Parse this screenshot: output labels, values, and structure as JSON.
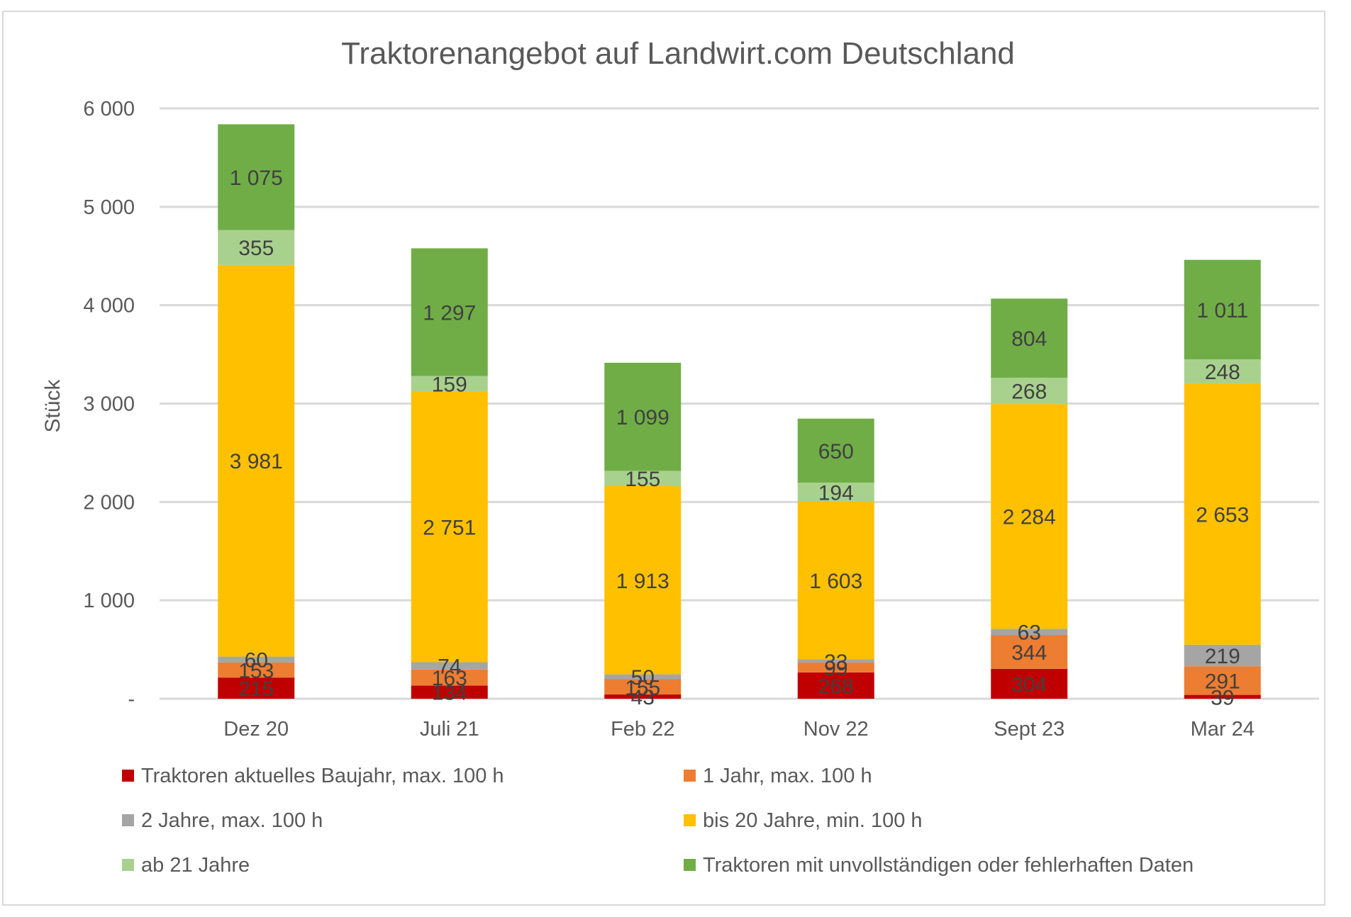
{
  "chart_data": {
    "type": "bar",
    "stacked": true,
    "title": "Traktorenangebot auf Landwirt.com Deutschland",
    "ylabel": "Stück",
    "xlabel": "",
    "ylim": [
      0,
      6000
    ],
    "yticks": [
      0,
      1000,
      2000,
      3000,
      4000,
      5000,
      6000
    ],
    "ytick_labels": [
      "-",
      "1 000",
      "2 000",
      "3 000",
      "4 000",
      "5 000",
      "6 000"
    ],
    "grid": true,
    "legend_position": "bottom",
    "categories": [
      "Dez 20",
      "Juli 21",
      "Feb 22",
      "Nov 22",
      "Sept 23",
      "Mar 24"
    ],
    "series": [
      {
        "name": "Traktoren aktuelles Baujahr, max. 100 h",
        "color": "#c00000",
        "values": [
          215,
          134,
          43,
          268,
          304,
          39
        ],
        "labels": [
          "215",
          "134",
          "43",
          "268",
          "304",
          "39"
        ]
      },
      {
        "name": "1 Jahr, max. 100 h",
        "color": "#ed7d31",
        "values": [
          153,
          163,
          155,
          99,
          344,
          291
        ],
        "labels": [
          "153",
          "163",
          "155",
          "99",
          "344",
          "291"
        ]
      },
      {
        "name": "2 Jahre, max. 100 h",
        "color": "#a5a5a5",
        "values": [
          60,
          74,
          50,
          33,
          63,
          219
        ],
        "labels": [
          "60",
          "74",
          "50",
          "33",
          "63",
          "219"
        ]
      },
      {
        "name": "bis 20 Jahre, min. 100 h",
        "color": "#ffc000",
        "values": [
          3981,
          2751,
          1913,
          1603,
          2284,
          2653
        ],
        "labels": [
          "3 981",
          "2 751",
          "1 913",
          "1 603",
          "2 284",
          "2 653"
        ]
      },
      {
        "name": "ab 21 Jahre",
        "color": "#a9d18e",
        "values": [
          355,
          159,
          155,
          194,
          268,
          248
        ],
        "labels": [
          "355",
          "159",
          "155",
          "194",
          "268",
          "248"
        ]
      },
      {
        "name": "Traktoren mit unvollständigen oder fehlerhaften Daten",
        "color": "#70ad47",
        "values": [
          1075,
          1297,
          1099,
          650,
          804,
          1011
        ],
        "labels": [
          "1 075",
          "1 297",
          "1 099",
          "650",
          "804",
          "1 011"
        ]
      }
    ]
  }
}
